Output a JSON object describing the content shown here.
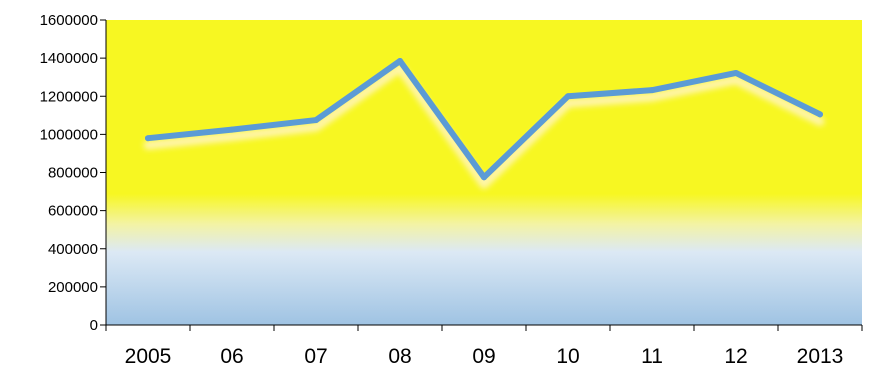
{
  "chart_data": {
    "type": "line",
    "title": "",
    "xlabel": "",
    "ylabel": "",
    "categories": [
      "2005",
      "06",
      "07",
      "08",
      "09",
      "10",
      "11",
      "12",
      "2013"
    ],
    "series": [
      {
        "values": [
          980000,
          1025000,
          1075000,
          1385000,
          775000,
          1200000,
          1232000,
          1322000,
          1105000
        ]
      }
    ],
    "ylim": [
      0,
      1600000
    ],
    "yticks": [
      "0",
      "200000",
      "400000",
      "600000",
      "800000",
      "1000000",
      "1200000",
      "1400000",
      "1600000"
    ],
    "grid": false,
    "legend": "none",
    "colors": {
      "line": "#5b9bd5",
      "line_glow": "#fff5b0",
      "plot_bg_top": "#f7f722",
      "plot_bg_mid": "#f3f3a5",
      "plot_bg_light": "#dce9f5",
      "plot_bg_bottom": "#9fc3e3",
      "axis": "#000000"
    }
  }
}
